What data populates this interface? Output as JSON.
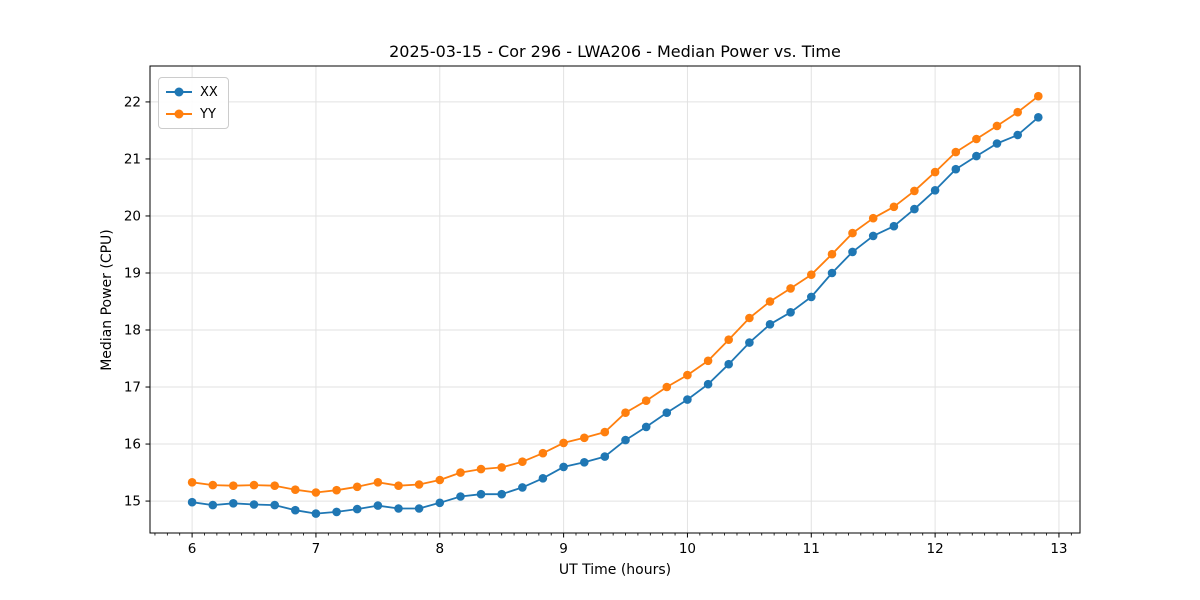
{
  "chart_data": {
    "type": "line",
    "title": "2025-03-15 - Cor 296 - LWA206 - Median Power vs. Time",
    "xlabel": "UT Time (hours)",
    "ylabel": "Median Power (CPU)",
    "xlim": [
      5.66,
      13.17
    ],
    "ylim": [
      14.44,
      22.63
    ],
    "x_ticks": [
      6,
      7,
      8,
      9,
      10,
      11,
      12,
      13
    ],
    "y_ticks": [
      15,
      16,
      17,
      18,
      19,
      20,
      21,
      22
    ],
    "x_minor_step": 0.1,
    "grid": true,
    "grid_color": "#e2e2e2",
    "legend_position": "upper left",
    "x": [
      6.0,
      6.167,
      6.333,
      6.5,
      6.667,
      6.833,
      7.0,
      7.167,
      7.333,
      7.5,
      7.667,
      7.833,
      8.0,
      8.167,
      8.333,
      8.5,
      8.667,
      8.833,
      9.0,
      9.167,
      9.333,
      9.5,
      9.667,
      9.833,
      10.0,
      10.167,
      10.333,
      10.5,
      10.667,
      10.833,
      11.0,
      11.167,
      11.333,
      11.5,
      11.667,
      11.833,
      12.0,
      12.167,
      12.333,
      12.5,
      12.667,
      12.833
    ],
    "series": [
      {
        "name": "XX",
        "color": "#1f77b4",
        "values": [
          14.98,
          14.93,
          14.96,
          14.94,
          14.93,
          14.84,
          14.78,
          14.81,
          14.86,
          14.92,
          14.87,
          14.87,
          14.97,
          15.08,
          15.12,
          15.12,
          15.24,
          15.4,
          15.6,
          15.68,
          15.78,
          16.07,
          16.3,
          16.55,
          16.78,
          17.05,
          17.4,
          17.78,
          18.1,
          18.31,
          18.58,
          19.0,
          19.37,
          19.65,
          19.82,
          20.12,
          20.45,
          20.82,
          21.05,
          21.27,
          21.42,
          21.73
        ]
      },
      {
        "name": "YY",
        "color": "#ff7f0e",
        "values": [
          15.33,
          15.28,
          15.27,
          15.28,
          15.27,
          15.2,
          15.15,
          15.19,
          15.25,
          15.33,
          15.27,
          15.29,
          15.37,
          15.5,
          15.56,
          15.59,
          15.69,
          15.84,
          16.02,
          16.11,
          16.21,
          16.55,
          16.76,
          17.0,
          17.21,
          17.46,
          17.83,
          18.21,
          18.5,
          18.73,
          18.97,
          19.33,
          19.7,
          19.96,
          20.16,
          20.44,
          20.77,
          21.12,
          21.35,
          21.58,
          21.82,
          22.1
        ]
      }
    ]
  }
}
